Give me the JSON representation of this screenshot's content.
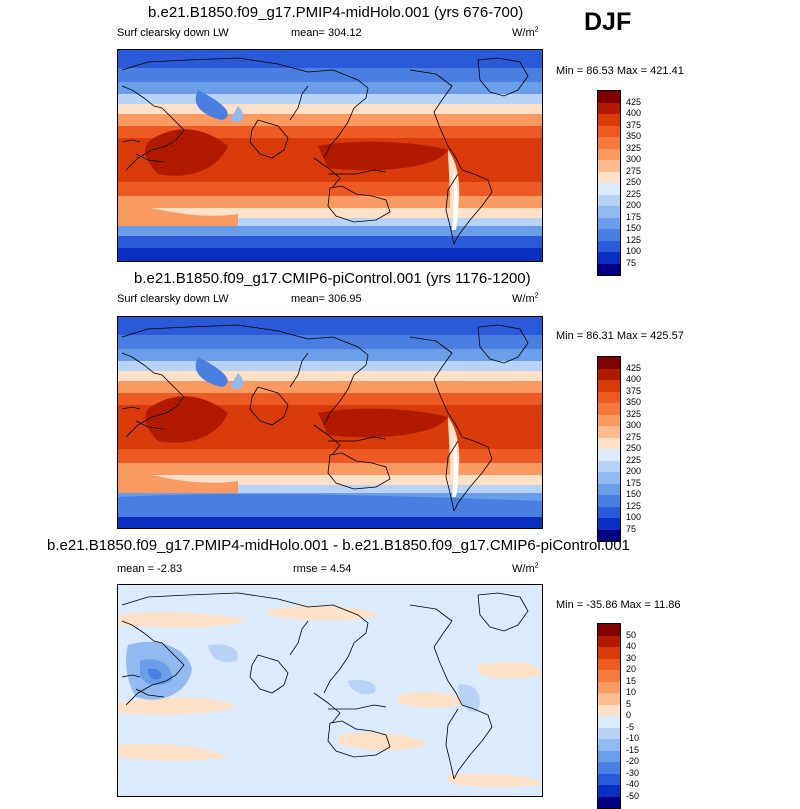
{
  "season": "DJF",
  "panels": [
    {
      "title": "b.e21.B1850.f09_g17.PMIP4-midHolo.001 (yrs 676-700)",
      "left_label": "Surf clearsky down LW",
      "center_label": "mean=  304.12",
      "units": "W/m",
      "units_sup": "2",
      "minmax": "Min =  86.53 Max = 421.41",
      "map_type": "abs",
      "colorbar": {
        "labels": [
          "425",
          "400",
          "375",
          "350",
          "325",
          "300",
          "275",
          "250",
          "225",
          "200",
          "175",
          "150",
          "125",
          "100",
          "75"
        ],
        "colors": [
          "#7f0000",
          "#b21a00",
          "#d83a0a",
          "#ee5a24",
          "#f47a40",
          "#f89a62",
          "#fbbd90",
          "#fde0c8",
          "#dcebfb",
          "#b8d3f5",
          "#93baf0",
          "#6a9ee8",
          "#4a7ee0",
          "#2a5ad8",
          "#0a2ec0",
          "#000080"
        ]
      }
    },
    {
      "title": "b.e21.B1850.f09_g17.CMIP6-piControl.001 (yrs 1176-1200)",
      "left_label": "Surf clearsky down LW",
      "center_label": "mean=  306.95",
      "units": "W/m",
      "units_sup": "2",
      "minmax": "Min =  86.31 Max = 425.57",
      "map_type": "abs",
      "colorbar": {
        "labels": [
          "425",
          "400",
          "375",
          "350",
          "325",
          "300",
          "275",
          "250",
          "225",
          "200",
          "175",
          "150",
          "125",
          "100",
          "75"
        ],
        "colors": [
          "#7f0000",
          "#b21a00",
          "#d83a0a",
          "#ee5a24",
          "#f47a40",
          "#f89a62",
          "#fbbd90",
          "#fde0c8",
          "#dcebfb",
          "#b8d3f5",
          "#93baf0",
          "#6a9ee8",
          "#4a7ee0",
          "#2a5ad8",
          "#0a2ec0",
          "#000080"
        ]
      }
    },
    {
      "title": "b.e21.B1850.f09_g17.PMIP4-midHolo.001 - b.e21.B1850.f09_g17.CMIP6-piControl.001",
      "left_label": "mean =  -2.83",
      "center_label": "rmse =   4.54",
      "units": "W/m",
      "units_sup": "2",
      "minmax": "Min = -35.86 Max =  11.86",
      "map_type": "diff",
      "colorbar": {
        "labels": [
          "50",
          "40",
          "30",
          "20",
          "15",
          "10",
          "5",
          "0",
          "-5",
          "-10",
          "-15",
          "-20",
          "-30",
          "-40",
          "-50"
        ],
        "colors": [
          "#7f0000",
          "#b21a00",
          "#d83a0a",
          "#ee5a24",
          "#f47a40",
          "#f89a62",
          "#fbbd90",
          "#fde0c8",
          "#dcebfb",
          "#b8d3f5",
          "#93baf0",
          "#6a9ee8",
          "#4a7ee0",
          "#2a5ad8",
          "#0a2ec0",
          "#000080"
        ]
      }
    }
  ]
}
